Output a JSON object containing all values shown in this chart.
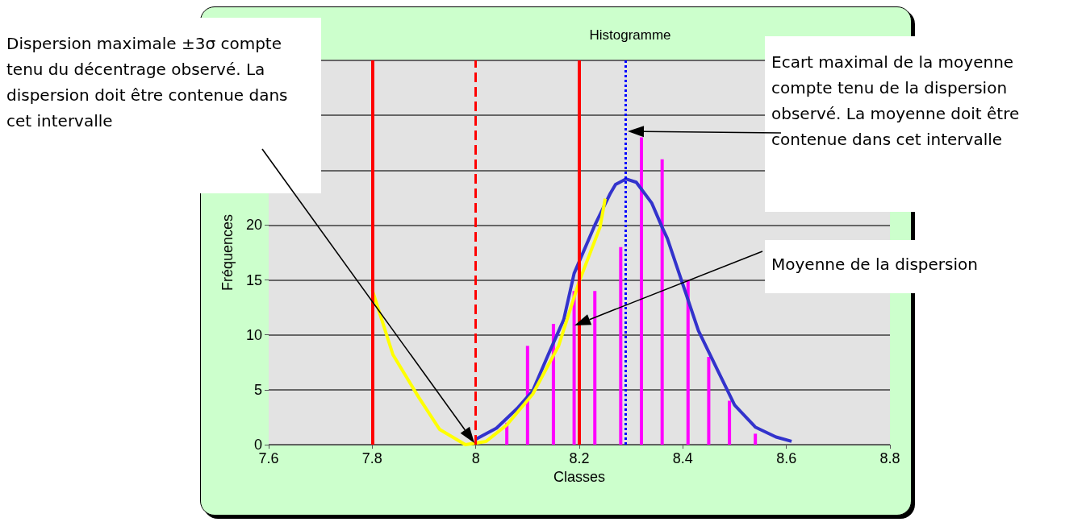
{
  "chart_data": {
    "type": "bar",
    "title": "Histogramme",
    "xlabel": "Classes",
    "ylabel": "Fréquences",
    "xlim": [
      7.6,
      8.8
    ],
    "xticks": [
      7.6,
      7.8,
      8,
      8.2,
      8.4,
      8.6,
      8.8
    ],
    "ylim": [
      0,
      35
    ],
    "yticks": [
      0,
      5,
      10,
      15,
      20,
      {
        "value": 25,
        "label": null
      },
      {
        "value": 30,
        "label": null
      },
      {
        "value": 35,
        "label": null
      }
    ],
    "grid": "y",
    "marker": "none",
    "line_style": "solid",
    "series": [
      {
        "color": "#ff00ff",
        "x": [
          8.06,
          8.1,
          8.15,
          8.19,
          8.23,
          8.28,
          8.32,
          8.36,
          8.41,
          8.45,
          8.49,
          8.54
        ],
        "values": [
          2,
          9,
          11,
          14,
          14,
          18,
          28,
          26,
          15,
          8,
          4,
          1
        ]
      },
      {
        "type": "line",
        "color": "#3333cc",
        "x": [
          8.0,
          8.04,
          8.08,
          8.11,
          8.14,
          8.17,
          8.19,
          8.23,
          8.26,
          8.27,
          8.29,
          8.31,
          8.34,
          8.36,
          8.37,
          8.4,
          8.43,
          8.47,
          8.5,
          8.54,
          8.58,
          8.61
        ],
        "values": [
          0.5,
          1.5,
          3.3,
          4.9,
          8.2,
          11.4,
          15.6,
          20,
          22.9,
          23.7,
          24.2,
          23.9,
          22,
          19.8,
          18.8,
          14.6,
          10.4,
          6.5,
          3.6,
          1.6,
          0.7,
          0.3
        ]
      },
      {
        "type": "line",
        "color": "#ffff00",
        "x": [
          7.8,
          7.84,
          7.89,
          7.93,
          7.98,
          8.02,
          8.06,
          8.11,
          8.16,
          8.2,
          8.24,
          8.25
        ],
        "values": [
          14.1,
          8.2,
          4.3,
          1.4,
          0,
          0.3,
          1.8,
          4.6,
          9,
          14.9,
          19.8,
          22.4
        ]
      }
    ],
    "ref_lines": [
      {
        "axis": "x",
        "value": 7.8,
        "color": "#ff0000",
        "line_style": "solid"
      },
      {
        "axis": "x",
        "value": 8,
        "color": "#ff0000",
        "line_style": "dashed"
      },
      {
        "axis": "x",
        "value": 8.2,
        "color": "#ff0000",
        "line_style": "solid"
      },
      {
        "axis": "x",
        "value": 8.29,
        "color": "#0000ff",
        "line_style": "dotted"
      }
    ],
    "annotations": [
      "Dispersion maximale ±3σ compte tenu du décentrage observé. La dispersion doit être contenue dans cet intervalle",
      "Ecart maximal de la moyenne compte tenu de la dispersion observé. La moyenne doit être contenue dans cet intervalle",
      "Moyenne de la dispersion"
    ]
  }
}
